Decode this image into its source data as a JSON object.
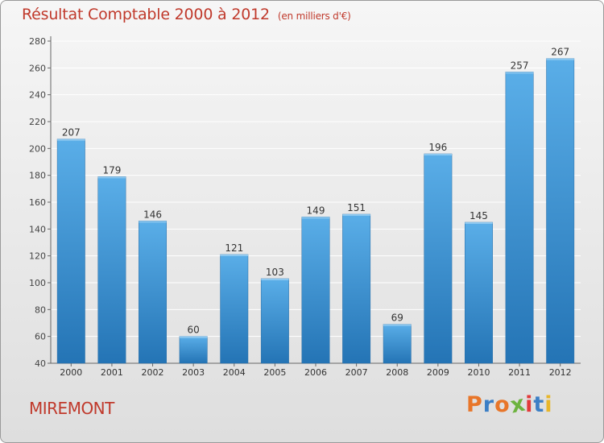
{
  "header": {
    "title": "Résultat Comptable 2000 à 2012",
    "subtitle": "(en milliers d'€)"
  },
  "footer": {
    "place": "MIREMONT",
    "logo": "Proxiti"
  },
  "colors": {
    "title": "#c0392b",
    "bar_top": "#5aaee8",
    "bar_bottom": "#2474b5",
    "logo_letters": [
      "#e8762a",
      "#3c7fc6",
      "#e8762a",
      "#6db33f",
      "#e23a3a",
      "#3c7fc6",
      "#e8b62a"
    ]
  },
  "chart_data": {
    "type": "bar",
    "title": "Résultat Comptable 2000 à 2012",
    "subtitle": "(en milliers d'€)",
    "xlabel": "",
    "ylabel": "",
    "categories": [
      "2000",
      "2001",
      "2002",
      "2003",
      "2004",
      "2005",
      "2006",
      "2007",
      "2008",
      "2009",
      "2010",
      "2011",
      "2012"
    ],
    "values": [
      207,
      179,
      146,
      60,
      121,
      103,
      149,
      151,
      69,
      196,
      145,
      257,
      267
    ],
    "ylim": [
      40,
      280
    ],
    "yticks": [
      40,
      60,
      80,
      100,
      120,
      140,
      160,
      180,
      200,
      220,
      240,
      260,
      280
    ],
    "grid": true,
    "legend": "none"
  }
}
